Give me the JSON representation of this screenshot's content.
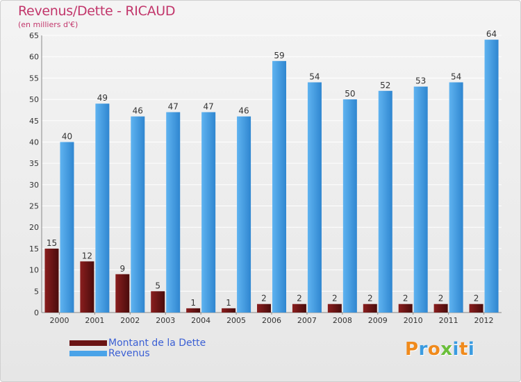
{
  "chart_data": {
    "type": "bar",
    "title": "Revenus/Dette - RICAUD",
    "subtitle": "(en milliers d'€)",
    "categories": [
      "2000",
      "2001",
      "2002",
      "2003",
      "2004",
      "2005",
      "2006",
      "2007",
      "2008",
      "2009",
      "2010",
      "2011",
      "2012"
    ],
    "series": [
      {
        "name": "Montant de la Dette",
        "color": "#6b1414",
        "values": [
          15,
          12,
          9,
          5,
          1,
          1,
          2,
          2,
          2,
          2,
          2,
          2,
          2
        ]
      },
      {
        "name": "Revenus",
        "color": "#4aa3e8",
        "values": [
          40,
          49,
          46,
          47,
          47,
          46,
          59,
          54,
          50,
          52,
          53,
          54,
          64
        ]
      }
    ],
    "ylim": [
      0,
      65
    ],
    "yticks": [
      0,
      5,
      10,
      15,
      20,
      25,
      30,
      35,
      40,
      45,
      50,
      55,
      60,
      65
    ],
    "grid": true,
    "legend_position": "bottom-left"
  },
  "logo": {
    "text": "Proxiti",
    "letter_colors": [
      "#f08a1c",
      "#3a9be0",
      "#f08a1c",
      "#6abf3a",
      "#3a9be0",
      "#f08a1c",
      "#3a9be0"
    ]
  }
}
